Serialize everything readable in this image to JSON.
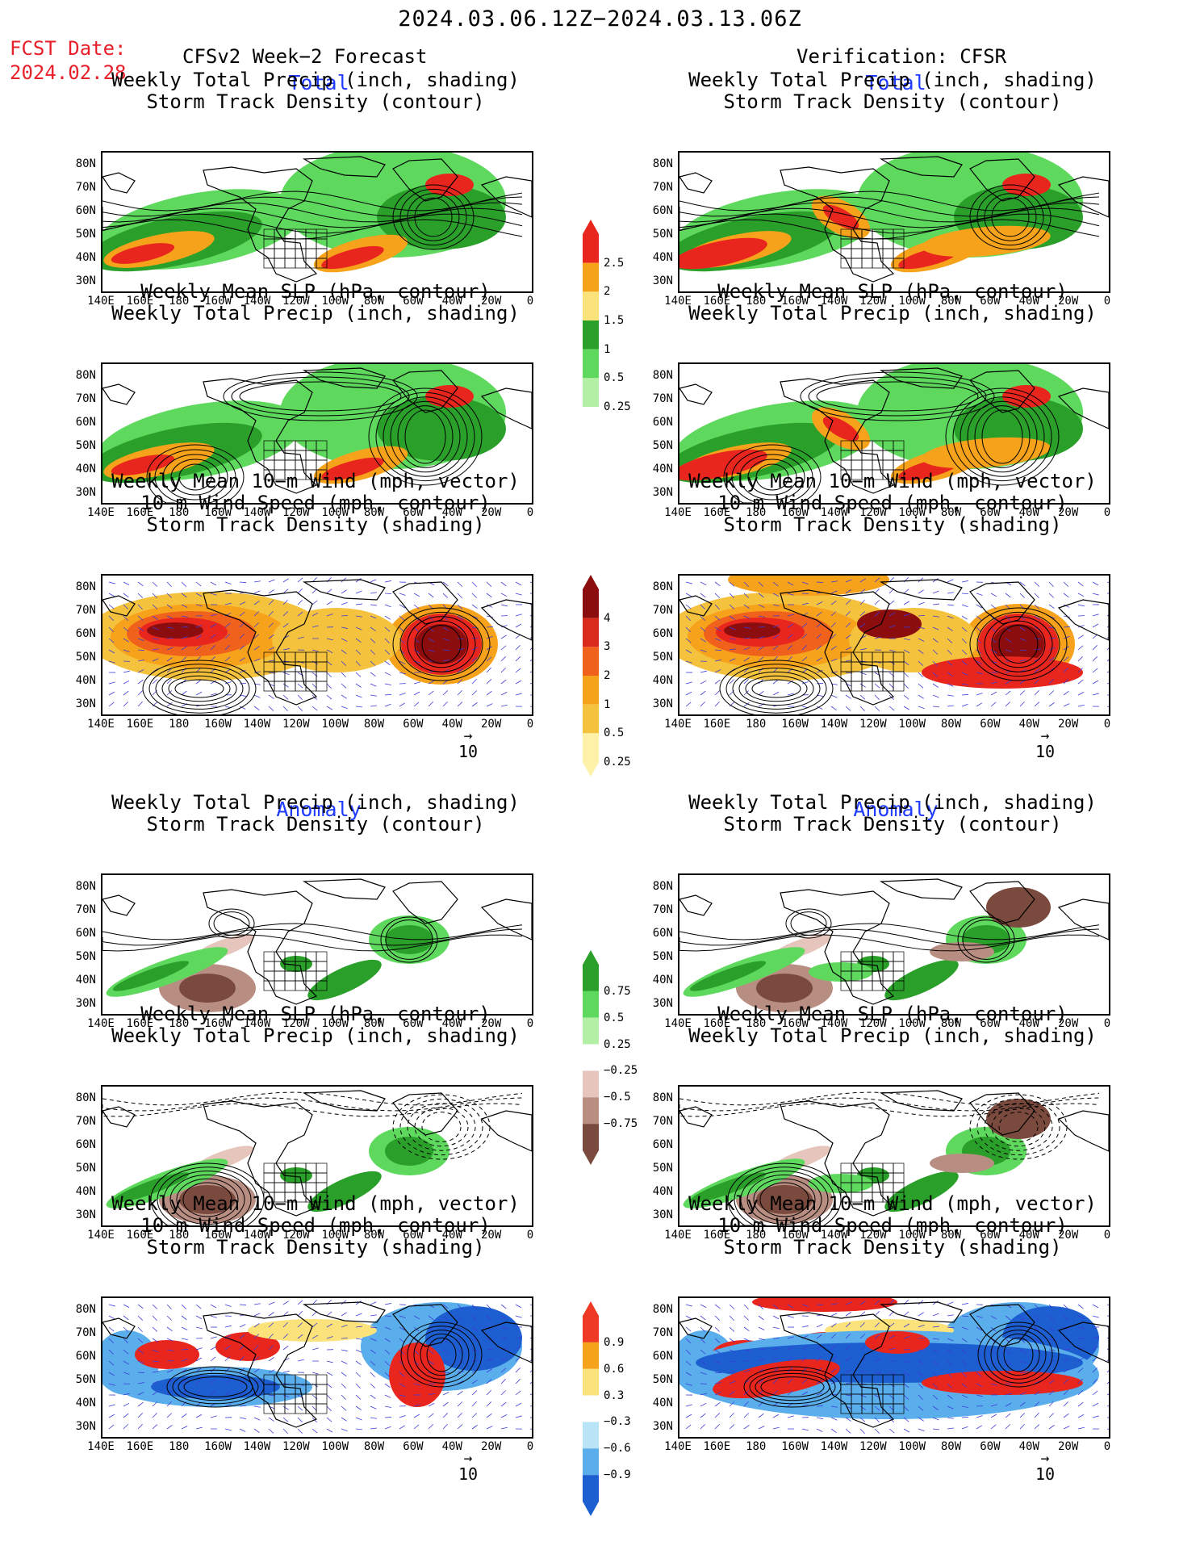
{
  "header": {
    "date_range": "2024.03.06.12Z−2024.03.13.06Z",
    "fcst_label": "FCST Date:",
    "fcst_date": "2024.02.28",
    "forecast_title": "CFSv2 Week−2 Forecast",
    "verification_title": "Verification: CFSR"
  },
  "sections": {
    "total": "Total",
    "anomaly": "Anomaly"
  },
  "panel_titles": {
    "precip_storm": [
      "Weekly Total Precip (inch, shading)",
      "Storm Track Density (contour)"
    ],
    "slp_precip": [
      "Weekly Mean SLP (hPa, contour)",
      "Weekly Total Precip (inch, shading)"
    ],
    "wind_storm": [
      "Weekly Mean 10−m Wind (mph, vector)",
      "10−m Wind Speed (mph, contour)",
      "Storm Track Density (shading)"
    ]
  },
  "axes": {
    "lat_labels": [
      "80N",
      "70N",
      "60N",
      "50N",
      "40N",
      "30N"
    ],
    "lon_labels": [
      "140E",
      "160E",
      "180",
      "160W",
      "140W",
      "120W",
      "100W",
      "80W",
      "60W",
      "40W",
      "20W",
      "0"
    ]
  },
  "vector_ref": "10",
  "colorbars": {
    "precip_total": {
      "labels": [
        "2.5",
        "2",
        "1.5",
        "1",
        "0.5",
        "0.25"
      ],
      "colors": [
        "#e8261e",
        "#f7a21b",
        "#fbe27a",
        "#2aa02a",
        "#5ed95e",
        "#b3f0a6"
      ]
    },
    "storm_total": {
      "labels": [
        "4",
        "3",
        "2",
        "1",
        "0.5",
        "0.25"
      ],
      "colors": [
        "#8c0d0d",
        "#d92a1e",
        "#f0621c",
        "#f7a21b",
        "#f5c23e",
        "#fdf2a8"
      ]
    },
    "precip_anom": {
      "labels": [
        "0.75",
        "0.5",
        "0.25",
        "−0.25",
        "−0.5",
        "−0.75"
      ],
      "colors": [
        "#2aa02a",
        "#5ed95e",
        "#b3f0a6",
        "#ffffff",
        "#e6c6bc",
        "#b98e82",
        "#7a4a3e"
      ]
    },
    "storm_anom": {
      "labels": [
        "0.9",
        "0.6",
        "0.3",
        "−0.3",
        "−0.6",
        "−0.9"
      ],
      "colors": [
        "#ee3a24",
        "#f7a21b",
        "#fbe27a",
        "#ffffff",
        "#b8e4f5",
        "#5aaeeb",
        "#1d5fd0"
      ]
    },
    "colors_ref": {
      "land": "#000000",
      "wind_vectors": "#3b3bd8"
    }
  }
}
